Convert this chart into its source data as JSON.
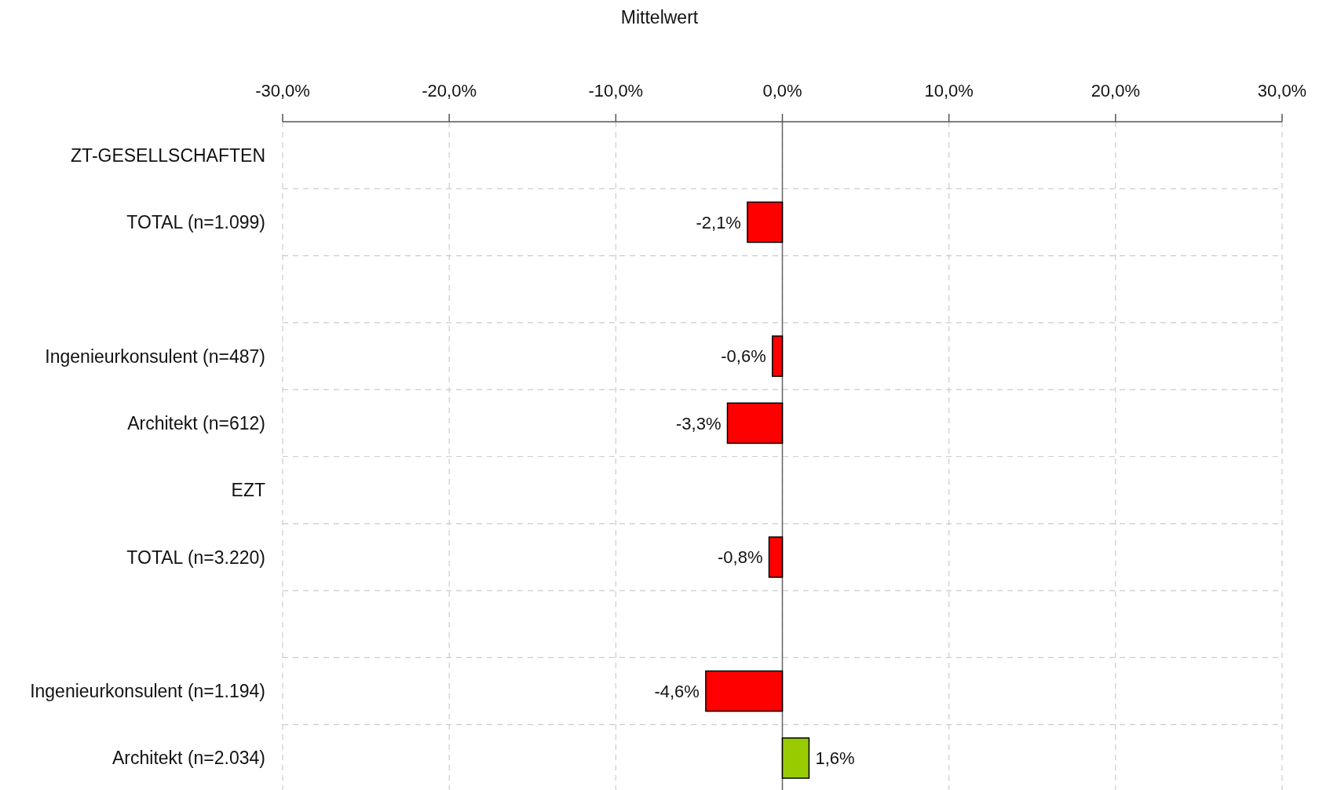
{
  "chart_data": {
    "type": "bar",
    "orientation": "horizontal",
    "title": "Mittelwert",
    "categories": [
      "ZT-GESELLSCHAFTEN",
      "TOTAL (n=1.099)",
      null,
      "Ingenieurkonsulent (n=487)",
      "Architekt (n=612)",
      "EZT",
      "TOTAL (n=3.220)",
      null,
      "Ingenieurkonsulent (n=1.194)",
      "Architekt (n=2.034)"
    ],
    "values": [
      null,
      -2.1,
      null,
      -0.6,
      -3.3,
      null,
      -0.8,
      null,
      -4.6,
      1.6
    ],
    "colors": [
      null,
      "#ff0000",
      null,
      "#ff0000",
      "#ff0000",
      null,
      "#ff0000",
      null,
      "#ff0000",
      "#99cc00"
    ],
    "value_labels": [
      null,
      "-2,1%",
      null,
      "-0,6%",
      "-3,3%",
      null,
      "-0,8%",
      null,
      "-4,6%",
      "1,6%"
    ],
    "xlim": [
      -30,
      30
    ],
    "xticks": [
      {
        "value": -30,
        "label": "-30,0%"
      },
      {
        "value": -20,
        "label": "-20,0%"
      },
      {
        "value": -10,
        "label": "-10,0%"
      },
      {
        "value": 0,
        "label": "0,0%"
      },
      {
        "value": 10,
        "label": "10,0%"
      },
      {
        "value": 20,
        "label": "20,0%"
      },
      {
        "value": 30,
        "label": "30,0%"
      }
    ],
    "grid": true
  }
}
